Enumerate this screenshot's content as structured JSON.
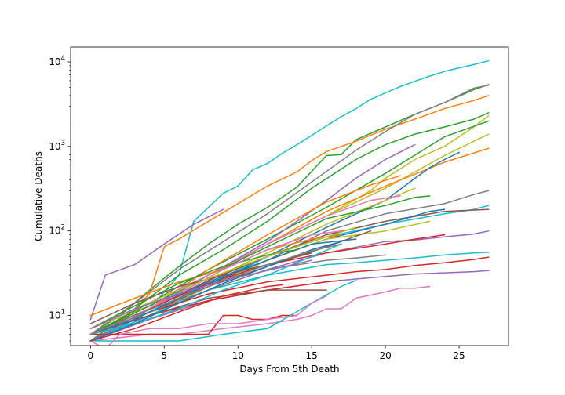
{
  "chart_data": {
    "type": "line",
    "xlabel": "Days From 5th Death",
    "ylabel": "Cumulative Deaths",
    "xlim": [
      -1.35,
      28.35
    ],
    "ylim": [
      4.4,
      15000
    ],
    "yscale": "log",
    "grid": false,
    "legend": "none",
    "x_ticks": [
      0,
      5,
      10,
      15,
      20,
      25
    ],
    "y_ticks": [
      {
        "value": 10,
        "base": "10",
        "exp": "1"
      },
      {
        "value": 100,
        "base": "10",
        "exp": "2"
      },
      {
        "value": 1000,
        "base": "10",
        "exp": "3"
      },
      {
        "value": 10000,
        "base": "10",
        "exp": "4"
      }
    ],
    "series": [
      {
        "color": "#17becf",
        "x": [
          0,
          2,
          4,
          6,
          7,
          8,
          9,
          10,
          11,
          12,
          13,
          14,
          15,
          16,
          17,
          18,
          19,
          20,
          21,
          22,
          23,
          24,
          25,
          26,
          27
        ],
        "y": [
          5,
          7,
          12,
          30,
          130,
          190,
          280,
          340,
          530,
          630,
          830,
          1050,
          1350,
          1750,
          2250,
          2800,
          3600,
          4300,
          5100,
          5900,
          6800,
          7700,
          8500,
          9300,
          10300
        ]
      },
      {
        "color": "#2ca02c",
        "x": [
          0,
          2,
          4,
          6,
          8,
          10,
          12,
          14,
          16,
          17,
          18,
          20,
          22,
          24,
          26,
          27
        ],
        "y": [
          6,
          10,
          20,
          38,
          70,
          120,
          190,
          330,
          780,
          800,
          1200,
          1700,
          2400,
          3300,
          4700,
          5400
        ]
      },
      {
        "color": "#ff7f0e",
        "x": [
          0,
          2,
          4,
          5,
          6,
          8,
          10,
          12,
          14,
          15,
          16,
          18,
          20,
          22,
          24,
          26,
          27
        ],
        "y": [
          5,
          8,
          18,
          65,
          80,
          130,
          210,
          340,
          500,
          680,
          870,
          1150,
          1600,
          2100,
          2800,
          3500,
          4000
        ]
      },
      {
        "color": "#7f7f7f",
        "x": [
          0,
          3,
          6,
          9,
          12,
          15,
          18,
          20,
          22,
          24,
          26,
          27
        ],
        "y": [
          6,
          14,
          35,
          75,
          160,
          380,
          900,
          1500,
          2400,
          3300,
          4900,
          5300
        ]
      },
      {
        "color": "#2ca02c",
        "x": [
          0,
          3,
          6,
          9,
          12,
          15,
          18,
          20,
          22,
          24,
          26,
          27
        ],
        "y": [
          5,
          12,
          30,
          60,
          130,
          320,
          700,
          1050,
          1400,
          1700,
          2100,
          2500
        ]
      },
      {
        "color": "#bcbd22",
        "x": [
          0,
          4,
          8,
          12,
          16,
          19,
          20,
          22,
          24,
          26,
          27
        ],
        "y": [
          6,
          12,
          28,
          70,
          150,
          300,
          420,
          700,
          1000,
          1700,
          2300
        ]
      },
      {
        "color": "#bcbd22",
        "x": [
          0,
          4,
          8,
          12,
          16,
          20,
          24,
          27
        ],
        "y": [
          7,
          13,
          30,
          70,
          150,
          320,
          780,
          1400
        ]
      },
      {
        "color": "#2ca02c",
        "x": [
          0,
          4,
          8,
          12,
          16,
          20,
          24,
          27
        ],
        "y": [
          6,
          14,
          35,
          80,
          190,
          480,
          1300,
          2000
        ]
      },
      {
        "color": "#ff7f0e",
        "x": [
          0,
          4,
          8,
          12,
          16,
          20,
          24,
          27
        ],
        "y": [
          6,
          13,
          30,
          70,
          170,
          340,
          650,
          950
        ]
      },
      {
        "color": "#9467bd",
        "x": [
          0,
          4,
          8,
          12,
          14,
          16,
          18,
          20,
          22
        ],
        "y": [
          5,
          12,
          30,
          75,
          130,
          230,
          420,
          700,
          1050
        ]
      },
      {
        "color": "#1f77b4",
        "x": [
          0,
          4,
          8,
          12,
          16,
          20,
          22,
          23,
          24,
          25
        ],
        "y": [
          5,
          10,
          22,
          50,
          110,
          230,
          420,
          560,
          700,
          850
        ]
      },
      {
        "color": "#ff7f0e",
        "x": [
          0,
          4,
          8,
          12,
          16,
          19,
          21
        ],
        "y": [
          6,
          12,
          35,
          90,
          220,
          350,
          450
        ]
      },
      {
        "color": "#7f7f7f",
        "x": [
          0,
          4,
          8,
          12,
          16,
          20,
          24,
          26,
          27
        ],
        "y": [
          5,
          11,
          22,
          45,
          100,
          160,
          210,
          270,
          300
        ]
      },
      {
        "color": "#17becf",
        "x": [
          0,
          4,
          8,
          12,
          16,
          20,
          24,
          26,
          27
        ],
        "y": [
          6,
          11,
          24,
          50,
          85,
          120,
          160,
          180,
          200
        ]
      },
      {
        "color": "#bcbd22",
        "x": [
          0,
          4,
          8,
          12,
          16,
          20,
          22
        ],
        "y": [
          6,
          12,
          26,
          55,
          120,
          230,
          320
        ]
      },
      {
        "color": "#2ca02c",
        "x": [
          0,
          4,
          8,
          12,
          16,
          20,
          22,
          23
        ],
        "y": [
          6,
          13,
          30,
          65,
          140,
          200,
          250,
          260
        ]
      },
      {
        "color": "#e377c2",
        "x": [
          0,
          4,
          8,
          12,
          16,
          19,
          21
        ],
        "y": [
          7,
          14,
          30,
          70,
          150,
          230,
          260
        ]
      },
      {
        "color": "#8c564b",
        "x": [
          0,
          4,
          8,
          12,
          16,
          20,
          24,
          27
        ],
        "y": [
          6,
          12,
          26,
          50,
          90,
          130,
          170,
          180
        ]
      },
      {
        "color": "#1f77b4",
        "x": [
          0,
          4,
          8,
          12,
          16,
          20,
          23,
          24
        ],
        "y": [
          6,
          12,
          25,
          45,
          80,
          120,
          170,
          180
        ]
      },
      {
        "color": "#bcbd22",
        "x": [
          0,
          4,
          8,
          12,
          16,
          20,
          23
        ],
        "y": [
          5,
          10,
          22,
          45,
          80,
          100,
          130
        ]
      },
      {
        "color": "#9467bd",
        "x": [
          0,
          4,
          8,
          12,
          16,
          20,
          22,
          24,
          26,
          27
        ],
        "y": [
          5,
          10,
          20,
          35,
          55,
          75,
          78,
          85,
          92,
          100
        ]
      },
      {
        "color": "#d62728",
        "x": [
          0,
          4,
          8,
          12,
          16,
          20,
          22,
          24
        ],
        "y": [
          6,
          12,
          24,
          40,
          55,
          70,
          80,
          90
        ]
      },
      {
        "color": "#8c564b",
        "x": [
          0,
          4,
          8,
          12,
          16,
          19
        ],
        "y": [
          6,
          11,
          22,
          38,
          65,
          100
        ]
      },
      {
        "color": "#17becf",
        "x": [
          0,
          4,
          8,
          12,
          16,
          18,
          20,
          22,
          24,
          26,
          27
        ],
        "y": [
          5,
          10,
          20,
          30,
          40,
          42,
          45,
          48,
          52,
          55,
          56
        ]
      },
      {
        "color": "#d62728",
        "x": [
          0,
          4,
          8,
          12,
          16,
          18,
          20,
          22,
          24,
          26,
          27
        ],
        "y": [
          6,
          11,
          18,
          25,
          30,
          33,
          35,
          39,
          42,
          46,
          49
        ]
      },
      {
        "color": "#9467bd",
        "x": [
          0,
          4,
          8,
          12,
          16,
          18,
          20,
          22,
          24,
          26,
          27
        ],
        "y": [
          5,
          9,
          15,
          20,
          25,
          27,
          29,
          31,
          32,
          33,
          34
        ]
      },
      {
        "color": "#e377c2",
        "x": [
          0,
          4,
          6,
          9,
          12,
          14,
          15,
          16,
          17,
          18,
          20,
          21,
          22,
          23
        ],
        "y": [
          5,
          6,
          6,
          7,
          8,
          9,
          10,
          12,
          12,
          16,
          19,
          21,
          21,
          22
        ]
      },
      {
        "color": "#d62728",
        "x": [
          0,
          2,
          4,
          6,
          8,
          9,
          10,
          11,
          12,
          13,
          14
        ],
        "y": [
          6,
          6,
          6,
          6,
          6,
          10,
          10,
          9,
          9,
          10,
          10
        ]
      },
      {
        "color": "#7f7f7f",
        "x": [
          0,
          4,
          8,
          12,
          16,
          18,
          19,
          20
        ],
        "y": [
          6,
          11,
          20,
          35,
          45,
          48,
          50,
          52
        ]
      },
      {
        "color": "#17becf",
        "x": [
          0,
          3,
          6,
          9,
          12,
          15,
          17,
          18
        ],
        "y": [
          5,
          5,
          5,
          6,
          7,
          14,
          22,
          26
        ]
      },
      {
        "color": "#9467bd",
        "x": [
          0,
          1,
          3,
          5,
          7,
          9
        ],
        "y": [
          9,
          30,
          40,
          70,
          120,
          180
        ]
      },
      {
        "color": "#e377c2",
        "x": [
          0,
          1,
          2,
          4,
          6,
          8,
          10,
          12,
          14,
          15,
          16
        ],
        "y": [
          5,
          4,
          6,
          7,
          7,
          8,
          8,
          9,
          10,
          14,
          17
        ]
      },
      {
        "color": "#d62728",
        "x": [
          0,
          4,
          8,
          12,
          16,
          17
        ],
        "y": [
          6,
          10,
          15,
          20,
          25,
          26
        ]
      },
      {
        "color": "#8c564b",
        "x": [
          0,
          4,
          8,
          12,
          16
        ],
        "y": [
          6,
          10,
          16,
          20,
          20
        ]
      },
      {
        "color": "#ff7f0e",
        "x": [
          0,
          3,
          6,
          9,
          12,
          15,
          17
        ],
        "y": [
          10,
          16,
          25,
          35,
          60,
          80,
          90
        ]
      },
      {
        "color": "#17becf",
        "x": [
          0,
          3,
          6,
          9,
          12,
          15,
          17
        ],
        "y": [
          6,
          8,
          12,
          20,
          30,
          50,
          70
        ]
      },
      {
        "color": "#1f77b4",
        "x": [
          0,
          3,
          6,
          9,
          12,
          15,
          18
        ],
        "y": [
          6,
          9,
          16,
          28,
          45,
          70,
          80
        ]
      },
      {
        "color": "#2ca02c",
        "x": [
          0,
          3,
          6,
          9,
          12,
          14
        ],
        "y": [
          7,
          13,
          24,
          38,
          52,
          60
        ]
      },
      {
        "color": "#8c564b",
        "x": [
          0,
          3,
          6,
          9,
          12,
          15
        ],
        "y": [
          8,
          14,
          22,
          30,
          40,
          55
        ]
      },
      {
        "color": "#e377c2",
        "x": [
          0,
          3,
          6,
          9,
          12,
          15,
          17
        ],
        "y": [
          6,
          10,
          18,
          35,
          60,
          90,
          100
        ]
      },
      {
        "color": "#bcbd22",
        "x": [
          0,
          3,
          6,
          9,
          12,
          15,
          18
        ],
        "y": [
          7,
          12,
          20,
          32,
          50,
          75,
          110
        ]
      },
      {
        "color": "#1f77b4",
        "x": [
          0,
          3,
          6,
          9,
          12,
          15,
          17
        ],
        "y": [
          5,
          8,
          14,
          24,
          38,
          60,
          75
        ]
      },
      {
        "color": "#7f7f7f",
        "x": [
          0,
          3,
          6,
          9,
          12,
          15,
          17
        ],
        "y": [
          6,
          10,
          16,
          26,
          40,
          58,
          70
        ]
      },
      {
        "color": "#d62728",
        "x": [
          0,
          3,
          6,
          9,
          12,
          13
        ],
        "y": [
          5,
          7,
          11,
          17,
          22,
          23
        ]
      },
      {
        "color": "#9467bd",
        "x": [
          0,
          3,
          6,
          9,
          12,
          15
        ],
        "y": [
          7,
          12,
          18,
          26,
          34,
          45
        ]
      }
    ]
  }
}
